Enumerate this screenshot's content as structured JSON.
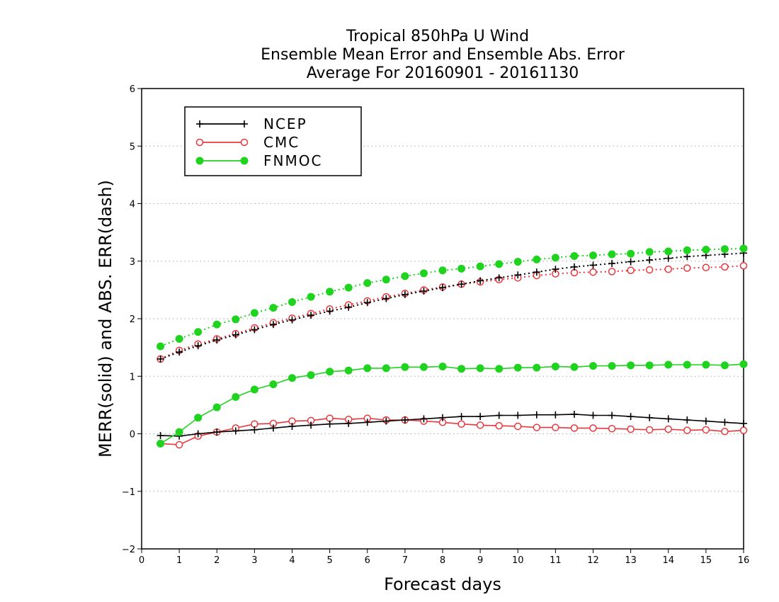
{
  "chart_data": {
    "type": "line",
    "title": [
      "Tropical 850hPa U Wind",
      "Ensemble Mean Error and Ensemble Abs. Error",
      "Average For 20160901 - 20161130"
    ],
    "xlabel": "Forecast days",
    "ylabel": "MERR(solid) and ABS. ERR(dash)",
    "xlim": [
      0,
      16
    ],
    "ylim": [
      -2,
      6
    ],
    "xticks": [
      "0",
      "1",
      "2",
      "3",
      "4",
      "5",
      "6",
      "7",
      "8",
      "9",
      "10",
      "11",
      "12",
      "13",
      "14",
      "15",
      "16"
    ],
    "yticks": [
      "-2",
      "-1",
      "0",
      "1",
      "2",
      "3",
      "4",
      "5",
      "6"
    ],
    "grid": "horizontal dotted",
    "legend_position": "top-left",
    "x": [
      0.5,
      1,
      1.5,
      2,
      2.5,
      3,
      3.5,
      4,
      4.5,
      5,
      5.5,
      6,
      6.5,
      7,
      7.5,
      8,
      8.5,
      9,
      9.5,
      10,
      10.5,
      11,
      11.5,
      12,
      12.5,
      13,
      13.5,
      14,
      14.5,
      15,
      15.5,
      16
    ],
    "series": [
      {
        "name": "NCEP",
        "color": "#000000",
        "marker": "plus",
        "merr": [
          -0.03,
          -0.04,
          0.0,
          0.03,
          0.05,
          0.07,
          0.1,
          0.13,
          0.15,
          0.17,
          0.18,
          0.2,
          0.22,
          0.24,
          0.26,
          0.28,
          0.3,
          0.3,
          0.32,
          0.32,
          0.33,
          0.33,
          0.34,
          0.32,
          0.32,
          0.3,
          0.28,
          0.26,
          0.24,
          0.22,
          0.2,
          0.18
        ],
        "abs_err": [
          1.3,
          1.42,
          1.53,
          1.63,
          1.72,
          1.81,
          1.9,
          1.98,
          2.06,
          2.13,
          2.2,
          2.28,
          2.35,
          2.42,
          2.48,
          2.54,
          2.6,
          2.66,
          2.71,
          2.76,
          2.81,
          2.86,
          2.9,
          2.93,
          2.96,
          2.99,
          3.02,
          3.05,
          3.08,
          3.1,
          3.12,
          3.14
        ]
      },
      {
        "name": "CMC",
        "color": "#e8383d",
        "marker": "open-circle",
        "merr": [
          -0.17,
          -0.19,
          -0.04,
          0.03,
          0.1,
          0.17,
          0.18,
          0.22,
          0.23,
          0.27,
          0.25,
          0.27,
          0.24,
          0.24,
          0.22,
          0.2,
          0.17,
          0.15,
          0.14,
          0.13,
          0.11,
          0.11,
          0.1,
          0.1,
          0.09,
          0.08,
          0.07,
          0.08,
          0.06,
          0.07,
          0.04,
          0.06
        ],
        "abs_err": [
          1.3,
          1.45,
          1.56,
          1.65,
          1.74,
          1.84,
          1.93,
          2.01,
          2.09,
          2.17,
          2.24,
          2.31,
          2.38,
          2.44,
          2.5,
          2.55,
          2.6,
          2.64,
          2.68,
          2.71,
          2.75,
          2.78,
          2.8,
          2.81,
          2.82,
          2.84,
          2.85,
          2.86,
          2.88,
          2.89,
          2.9,
          2.92
        ]
      },
      {
        "name": "FNMOC",
        "color": "#1fd31f",
        "marker": "filled-circle",
        "merr": [
          -0.17,
          0.03,
          0.28,
          0.46,
          0.64,
          0.77,
          0.86,
          0.97,
          1.02,
          1.08,
          1.1,
          1.14,
          1.14,
          1.16,
          1.16,
          1.17,
          1.13,
          1.14,
          1.13,
          1.15,
          1.15,
          1.17,
          1.16,
          1.18,
          1.18,
          1.19,
          1.19,
          1.2,
          1.2,
          1.2,
          1.19,
          1.21
        ],
        "abs_err": [
          1.52,
          1.65,
          1.77,
          1.9,
          1.99,
          2.1,
          2.19,
          2.29,
          2.38,
          2.47,
          2.54,
          2.62,
          2.68,
          2.74,
          2.79,
          2.84,
          2.87,
          2.91,
          2.95,
          2.99,
          3.03,
          3.06,
          3.09,
          3.1,
          3.12,
          3.13,
          3.16,
          3.17,
          3.19,
          3.2,
          3.21,
          3.22
        ]
      }
    ]
  }
}
